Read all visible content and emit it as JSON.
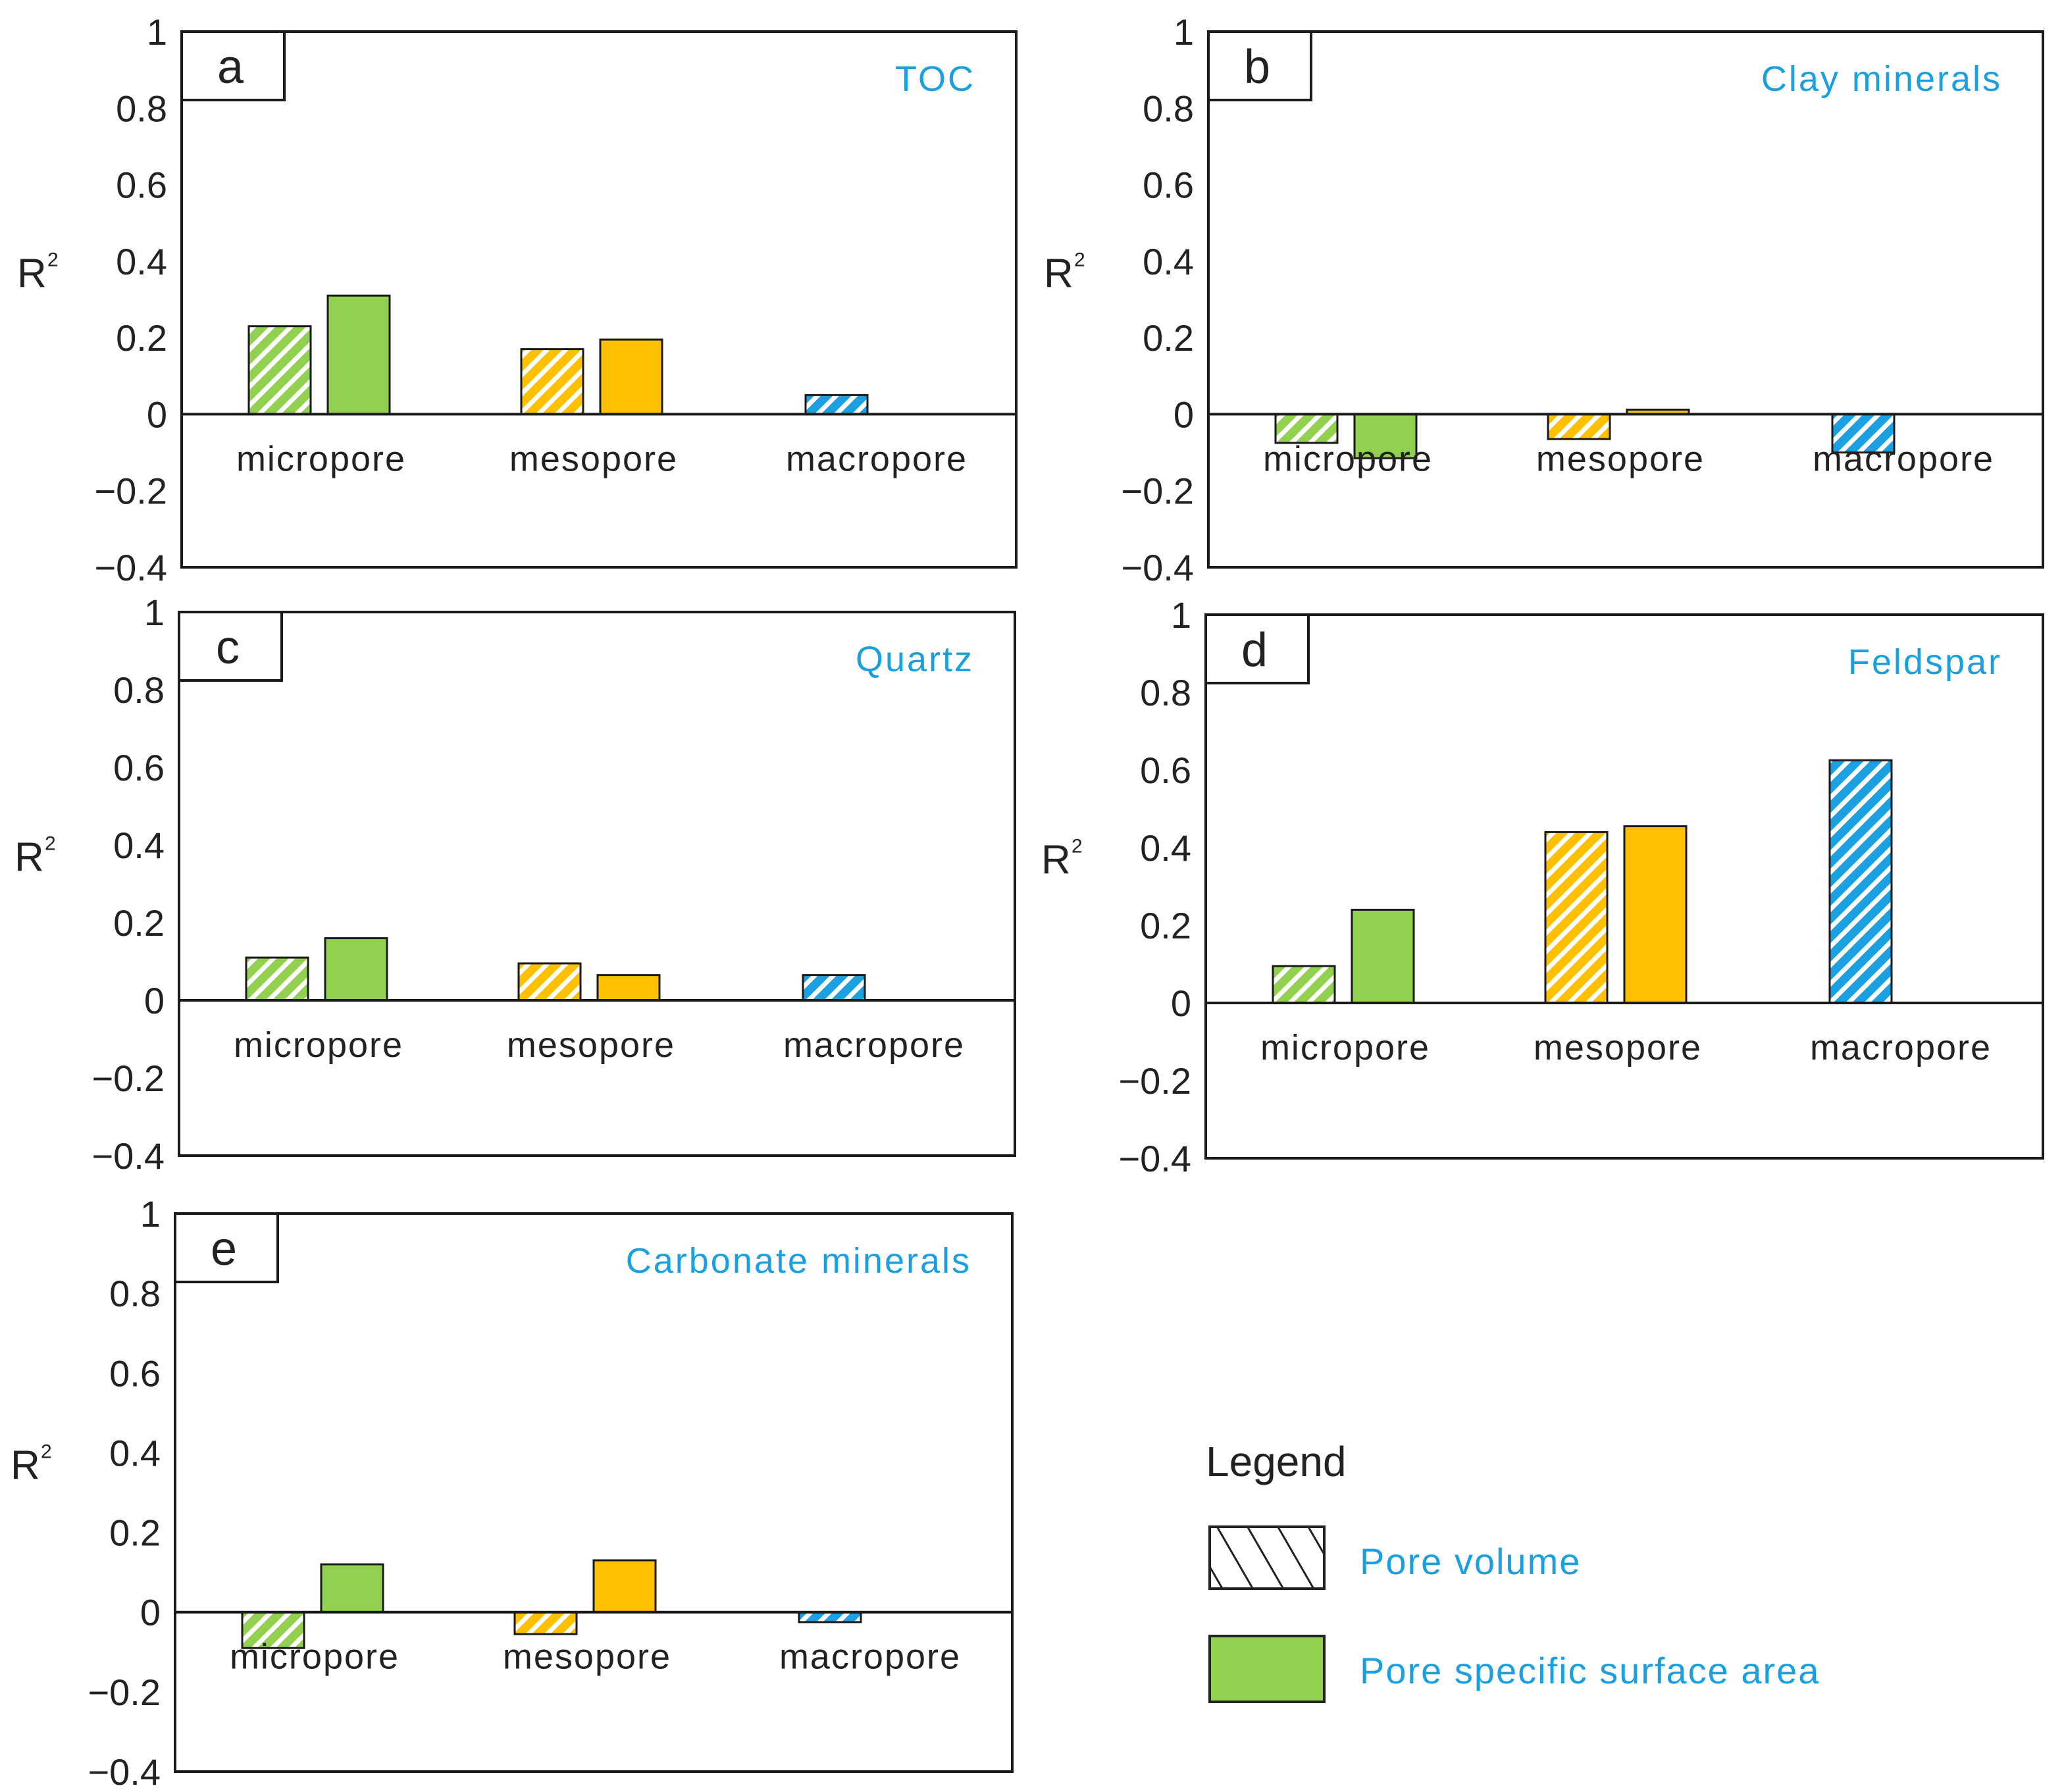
{
  "colors": {
    "green": "#92d050",
    "orange": "#ffc000",
    "blue": "#1ba1e2",
    "title": "#1aa0e0",
    "axis": "#1a1a1a"
  },
  "legend": {
    "title": "Legend",
    "items": [
      {
        "label": "Pore volume",
        "style": "hatched"
      },
      {
        "label": "Pore specific surface area",
        "style": "solid"
      }
    ]
  },
  "chart_data": [
    {
      "type": "bar",
      "panel": "a",
      "title": "TOC",
      "ylabel": "R",
      "ylabel_sup": "2",
      "ylim": [
        -0.4,
        1
      ],
      "yticks": [
        "1",
        "0.8",
        "0.6",
        "0.4",
        "0.2",
        "0",
        "−0.2",
        "−0.4"
      ],
      "categories": [
        "micropore",
        "mesopore",
        "macropore"
      ],
      "series": [
        {
          "name": "Pore volume",
          "values": [
            0.23,
            0.17,
            0.05
          ]
        },
        {
          "name": "Pore specific surface area",
          "values": [
            0.31,
            0.195,
            null
          ]
        }
      ]
    },
    {
      "type": "bar",
      "panel": "b",
      "title": "Clay minerals",
      "ylabel": "R",
      "ylabel_sup": "2",
      "ylim": [
        -0.4,
        1
      ],
      "yticks": [
        "1",
        "0.8",
        "0.6",
        "0.4",
        "0.2",
        "0",
        "−0.2",
        "−0.4"
      ],
      "categories": [
        "micropore",
        "mesopore",
        "macropore"
      ],
      "series": [
        {
          "name": "Pore volume",
          "values": [
            -0.075,
            -0.065,
            -0.1
          ]
        },
        {
          "name": "Pore specific surface area",
          "values": [
            -0.115,
            0.012,
            null
          ]
        }
      ]
    },
    {
      "type": "bar",
      "panel": "c",
      "title": "Quartz",
      "ylabel": "R",
      "ylabel_sup": "2",
      "ylim": [
        -0.4,
        1
      ],
      "yticks": [
        "1",
        "0.8",
        "0.6",
        "0.4",
        "0.2",
        "0",
        "−0.2",
        "−0.4"
      ],
      "categories": [
        "micropore",
        "mesopore",
        "macropore"
      ],
      "series": [
        {
          "name": "Pore volume",
          "values": [
            0.11,
            0.095,
            0.065
          ]
        },
        {
          "name": "Pore specific surface area",
          "values": [
            0.16,
            0.065,
            null
          ]
        }
      ]
    },
    {
      "type": "bar",
      "panel": "d",
      "title": "Feldspar",
      "ylabel": "R",
      "ylabel_sup": "2",
      "ylim": [
        -0.4,
        1
      ],
      "yticks": [
        "1",
        "0.8",
        "0.6",
        "0.4",
        "0.2",
        "0",
        "−0.2",
        "−0.4"
      ],
      "categories": [
        "micropore",
        "mesopore",
        "macropore"
      ],
      "series": [
        {
          "name": "Pore volume",
          "values": [
            0.095,
            0.44,
            0.625
          ]
        },
        {
          "name": "Pore specific surface area",
          "values": [
            0.24,
            0.455,
            null
          ]
        }
      ]
    },
    {
      "type": "bar",
      "panel": "e",
      "title": "Carbonate minerals",
      "ylabel": "R",
      "ylabel_sup": "2",
      "ylim": [
        -0.4,
        1
      ],
      "yticks": [
        "1",
        "0.8",
        "0.6",
        "0.4",
        "0.2",
        "0",
        "−0.2",
        "−0.4"
      ],
      "categories": [
        "micropore",
        "mesopore",
        "macropore"
      ],
      "series": [
        {
          "name": "Pore volume",
          "values": [
            -0.09,
            -0.055,
            -0.025
          ]
        },
        {
          "name": "Pore specific surface area",
          "values": [
            0.12,
            0.13,
            null
          ]
        }
      ]
    }
  ]
}
